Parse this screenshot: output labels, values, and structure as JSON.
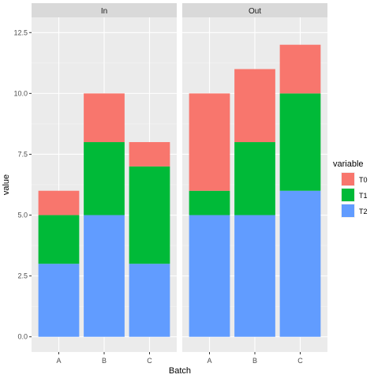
{
  "chart_data": {
    "type": "bar",
    "stacked": true,
    "xlabel": "Batch",
    "ylabel": "value",
    "ylim": [
      0,
      12.5
    ],
    "yticks": [
      0,
      2.5,
      5,
      7.5,
      10,
      12.5
    ],
    "ytick_labels": [
      "0.0",
      "2.5",
      "5.0",
      "7.5",
      "10.0",
      "12.5"
    ],
    "grid": true,
    "categories": [
      "A",
      "B",
      "C"
    ],
    "facets": [
      {
        "label": "In",
        "series": [
          {
            "name": "T2",
            "values": [
              3,
              5,
              3
            ]
          },
          {
            "name": "T1",
            "values": [
              2,
              3,
              4
            ]
          },
          {
            "name": "T0",
            "values": [
              1,
              2,
              1
            ]
          }
        ]
      },
      {
        "label": "Out",
        "series": [
          {
            "name": "T2",
            "values": [
              5,
              5,
              6
            ]
          },
          {
            "name": "T1",
            "values": [
              1,
              3,
              4
            ]
          },
          {
            "name": "T0",
            "values": [
              4,
              3,
              2
            ]
          }
        ]
      }
    ],
    "legend": {
      "title": "variable",
      "placement": "right",
      "items": [
        {
          "name": "T0",
          "color": "#F8766D"
        },
        {
          "name": "T1",
          "color": "#00BA38"
        },
        {
          "name": "T2",
          "color": "#619CFF"
        }
      ]
    },
    "colors": {
      "T0": "#F8766D",
      "T1": "#00BA38",
      "T2": "#619CFF"
    }
  }
}
